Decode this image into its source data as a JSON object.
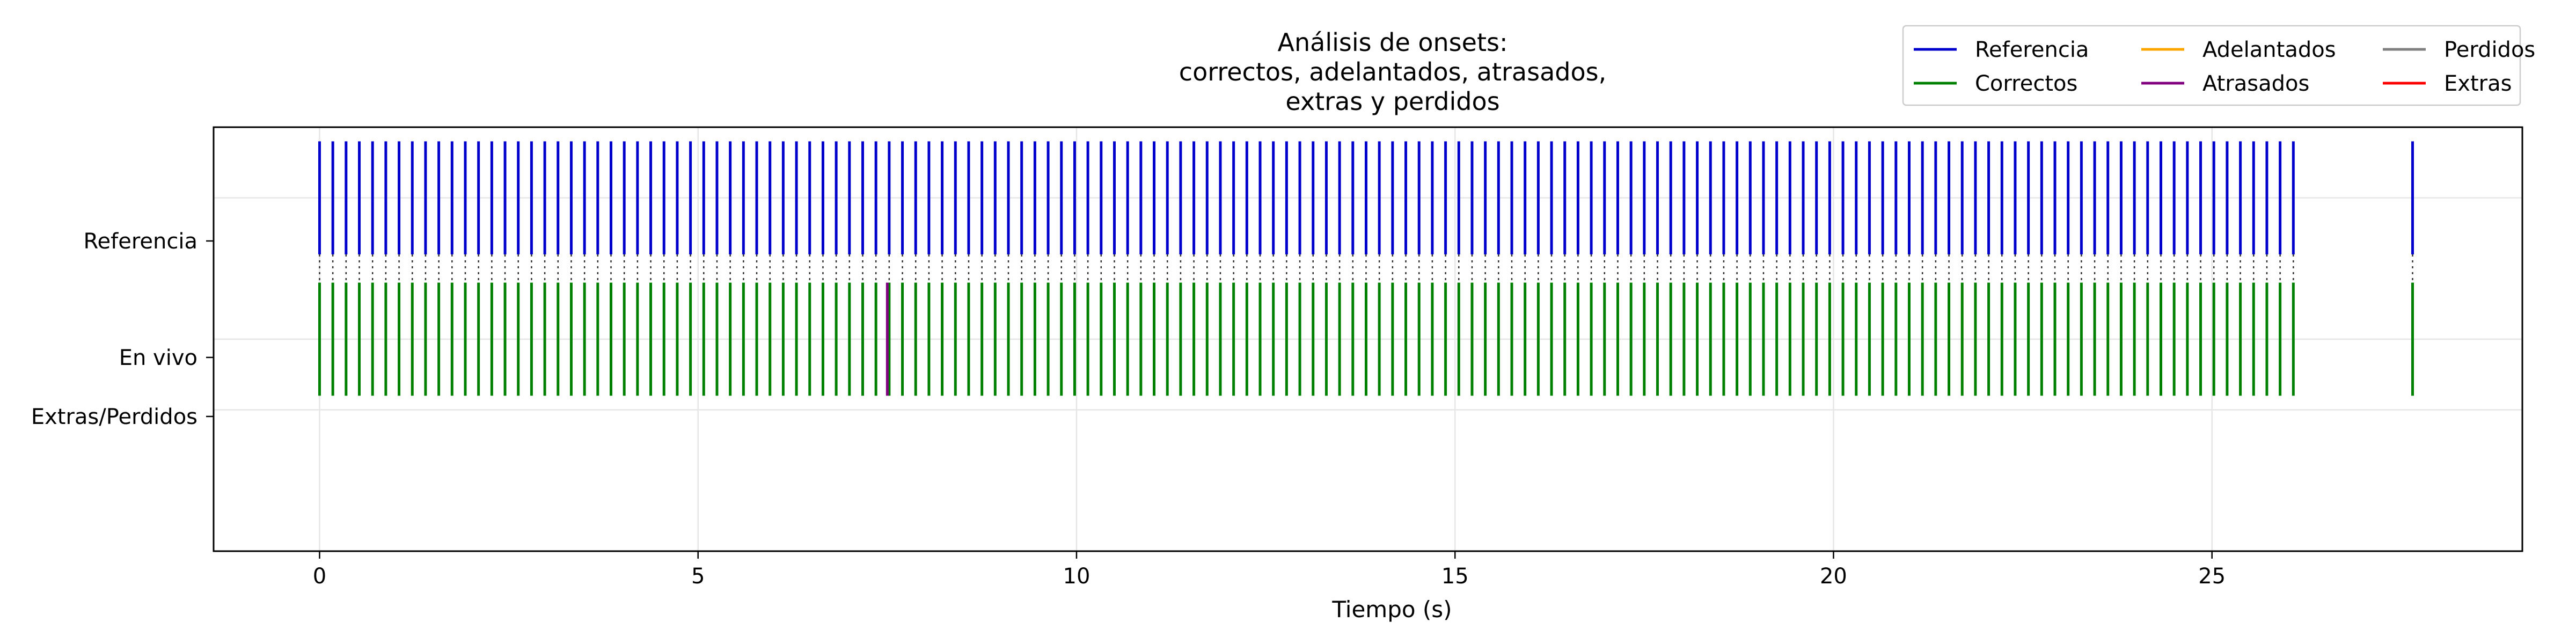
{
  "chart_data": {
    "type": "scatter",
    "title": [
      "Análisis de onsets:",
      "correctos, adelantados, atrasados,",
      "extras y perdidos"
    ],
    "xlabel": "Tiempo (s)",
    "ylabel": "",
    "xlim": [
      -1.4,
      29.1
    ],
    "xticks": [
      0,
      5,
      10,
      15,
      20,
      25
    ],
    "xtick_labels": [
      "0",
      "5",
      "10",
      "15",
      "20",
      "25"
    ],
    "ylim": [
      -1.5,
      1.5
    ],
    "yticks": [
      1,
      0,
      -0.5
    ],
    "ytick_labels": [
      "Referencia",
      "En vivo",
      "Extras/Perdidos"
    ],
    "grid": true,
    "legend": {
      "position": "top-right",
      "columns": 3,
      "entries": [
        {
          "label": "Referencia",
          "color": "#0000cc"
        },
        {
          "label": "Correctos",
          "color": "#008000"
        },
        {
          "label": "Adelantados",
          "color": "#ffa500"
        },
        {
          "label": "Atrasados",
          "color": "#800080"
        },
        {
          "label": "Perdidos",
          "color": "#808080"
        },
        {
          "label": "Extras",
          "color": "#ff0000"
        }
      ]
    },
    "series": [
      {
        "name": "Referencia",
        "color": "#0000cc",
        "row": 1,
        "x_start": 0,
        "x_end": 26.0,
        "step": 0.175,
        "extra_x": [
          27.65
        ]
      },
      {
        "name": "Correctos",
        "color": "#008000",
        "row": 0,
        "x_start": 0,
        "x_end": 26.0,
        "step": 0.175,
        "extra_x": [
          27.65
        ]
      },
      {
        "name": "Atrasados",
        "color": "#800080",
        "row": 0,
        "x": [
          7.5
        ]
      },
      {
        "name": "Adelantados",
        "color": "#ffa500",
        "row": 0,
        "x": []
      },
      {
        "name": "Perdidos",
        "color": "#808080",
        "row": -0.5,
        "x": []
      },
      {
        "name": "Extras",
        "color": "#ff0000",
        "row": -0.5,
        "x": []
      }
    ]
  }
}
